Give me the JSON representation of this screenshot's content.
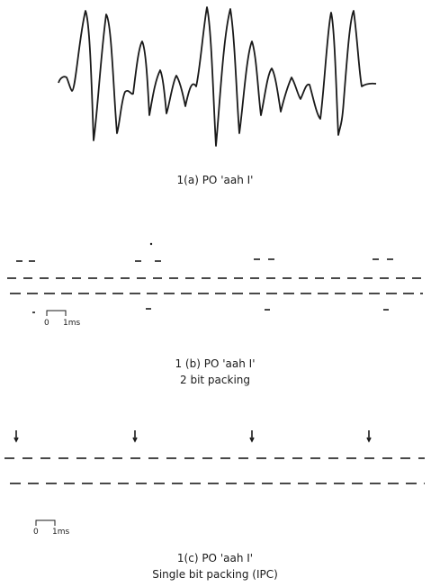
{
  "panels": [
    {
      "id": "a",
      "caption": "1(a)  PO 'aah I'"
    },
    {
      "id": "b",
      "caption_line1": "1 (b)  PO 'aah I'",
      "caption_line2": "2 bit packing",
      "scale_bar": {
        "zero": "0",
        "unit": "1ms"
      }
    },
    {
      "id": "c",
      "caption_line1": "1(c)  PO 'aah I'",
      "caption_line2": "Single bit packing (IPC)",
      "scale_bar": {
        "zero": "0",
        "unit": "1ms"
      }
    }
  ],
  "colors": {
    "ink": "#1a1a1a",
    "background": "#ffffff"
  }
}
